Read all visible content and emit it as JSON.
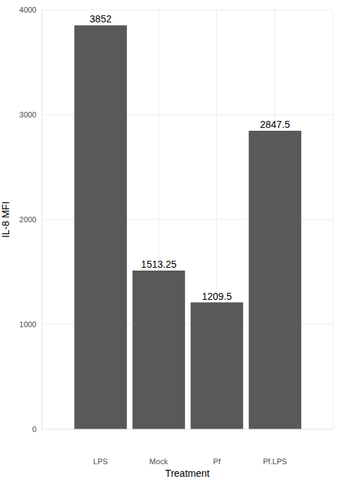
{
  "chart_data": {
    "type": "bar",
    "categories": [
      "LPS",
      "Mock",
      "Pf",
      "Pf.LPS"
    ],
    "values": [
      3852,
      1513.25,
      1209.5,
      2847.5
    ],
    "color": "#595959",
    "xlabel": "Treatment",
    "ylabel": "IL-8 MFI",
    "ylim": [
      0,
      4000
    ],
    "yticks": [
      0,
      1000,
      2000,
      3000,
      4000
    ],
    "grid": true,
    "data_labels": true
  }
}
